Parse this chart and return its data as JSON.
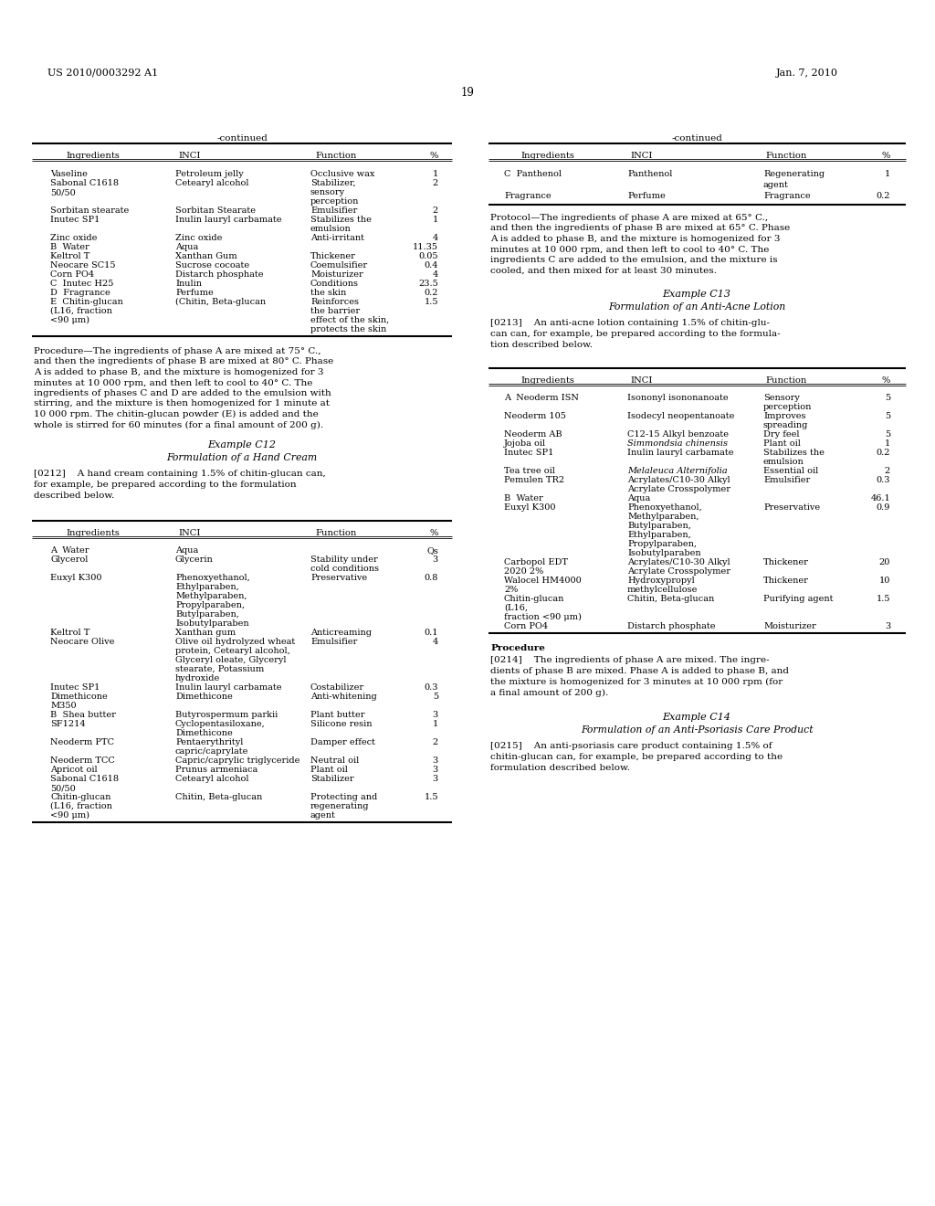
{
  "page_number": "19",
  "patent_left": "US 2010/0003292 A1",
  "patent_right": "Jan. 7, 2010",
  "background_color": "#ffffff",
  "text_color": "#000000"
}
